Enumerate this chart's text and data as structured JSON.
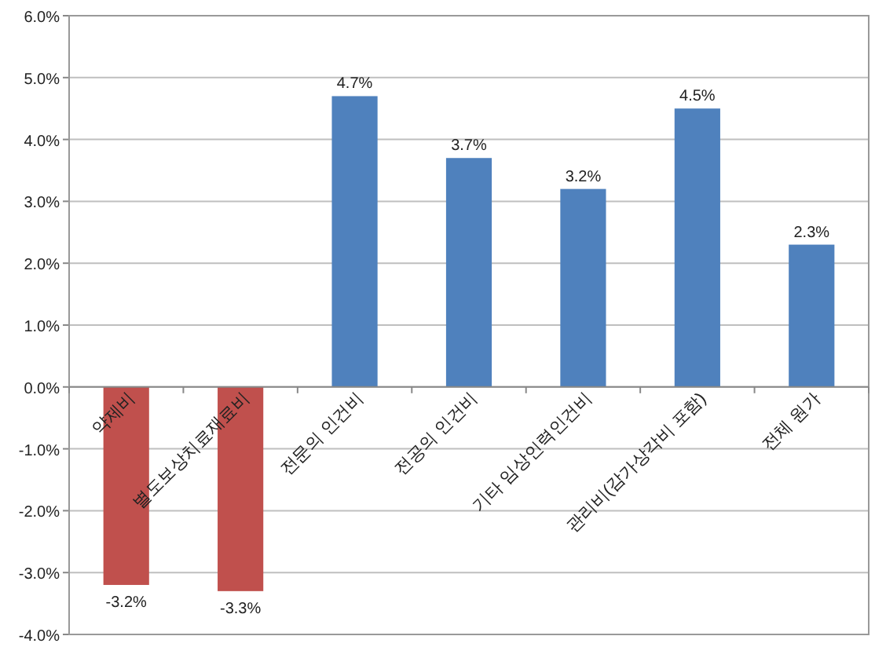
{
  "chart_data": {
    "type": "bar",
    "categories": [
      "약제비",
      "별도보상치료재료비",
      "전문의 인건비",
      "전공의 인건비",
      "기타 임상인력인건비",
      "관리비(감가상각비 포함)",
      "전체 원가"
    ],
    "values": [
      -3.2,
      -3.3,
      4.7,
      3.7,
      3.2,
      4.5,
      2.3
    ],
    "colors": [
      "#c0504d",
      "#c0504d",
      "#4f81bd",
      "#4f81bd",
      "#4f81bd",
      "#4f81bd",
      "#4f81bd"
    ],
    "value_labels": [
      "-3.2%",
      "-3.3%",
      "4.7%",
      "3.7%",
      "3.2%",
      "4.5%",
      "2.3%"
    ],
    "ylim": [
      -4,
      6
    ],
    "yticks": [
      {
        "value": -4,
        "label": "-4.0%"
      },
      {
        "value": -3,
        "label": "-3.0%"
      },
      {
        "value": -2,
        "label": "-2.0%"
      },
      {
        "value": -1,
        "label": "-1.0%"
      },
      {
        "value": 0,
        "label": "0.0%"
      },
      {
        "value": 1,
        "label": "1.0%"
      },
      {
        "value": 2,
        "label": "2.0%"
      },
      {
        "value": 3,
        "label": "3.0%"
      },
      {
        "value": 4,
        "label": "4.0%"
      },
      {
        "value": 5,
        "label": "5.0%"
      },
      {
        "value": 6,
        "label": "6.0%"
      }
    ],
    "grid": "y"
  }
}
